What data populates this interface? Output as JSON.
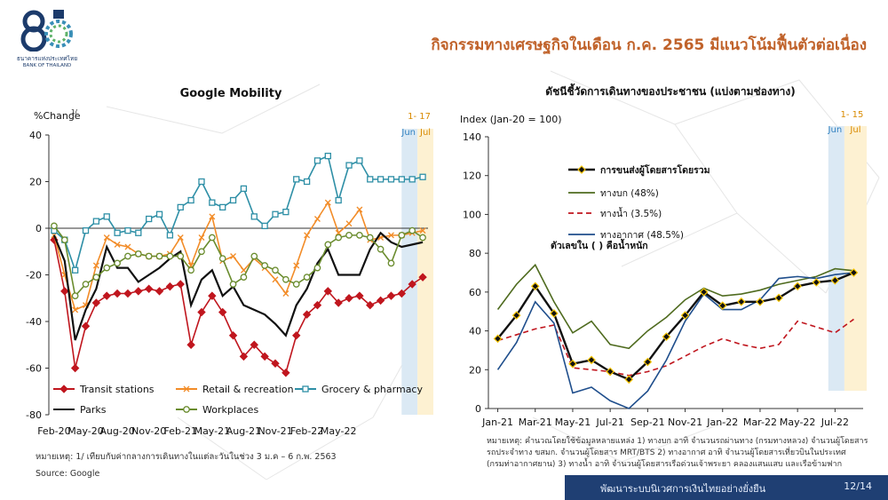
{
  "slide": {
    "title": "กิจกรรมทางเศรษฐกิจในเดือน ก.ค. 2565 มีแนวโน้มฟื้นตัวต่อเนื่อง",
    "logo_number": "85",
    "logo_text_th": "ธนาคารแห่งประเทศไทย",
    "logo_text_en": "BANK OF THAILAND",
    "footer": "พัฒนาระบบนิเวศการเงินไทยอย่างยั่งยืน",
    "page": "12/14",
    "colors": {
      "title": "#c0622a",
      "footer_bar": "#1f3f73",
      "logo": "#1c3b6b"
    }
  },
  "left_notes": {
    "note1": "หมายเหตุ: 1/ เทียบกับค่ากลางการเดินทางในแต่ละวันในช่วง 3 ม.ค –  6 ก.พ. 2563",
    "source": "Source: Google"
  },
  "right_notes": {
    "line1": "หมายเหตุ: คำนวณโดยใช้ข้อมูลหลายแหล่ง 1) ทางบก อาทิ จำนวนรถผ่านทาง (กรมทางหลวง) จำนวนผู้โดยสาร",
    "line2": "รถประจำทาง ขสมก. จำนวนผู้โดยสาร MRT/BTS  2) ทางอากาศ อาทิ จำนวนผู้โดยสารเที่ยวบินในประเทศ",
    "line3": "(กรมท่าอากาศยาน) 3) ทางน้ำ อาทิ จำนวนผู้โดยสารเรือด่วนเจ้าพระยา คลองแสนแสบ และเรือข้ามฟาก"
  },
  "chart_data": [
    {
      "type": "line",
      "title": "Google Mobility",
      "ylabel": "%Change",
      "ylabel_sup": "1/",
      "ylim": [
        -80,
        40
      ],
      "yticks": [
        -80,
        -60,
        -40,
        -20,
        0,
        20,
        40
      ],
      "xtick_labels": [
        "Feb-20",
        "May-20",
        "Aug-20",
        "Nov-20",
        "Feb-21",
        "May-21",
        "Aug-21",
        "Nov-21",
        "Feb-22",
        "May-22"
      ],
      "annotation_top": "1- 17",
      "shade_labels": [
        "Jun",
        "Jul"
      ],
      "legend_position": "bottom",
      "grid": false,
      "series": [
        {
          "name": "Transit stations",
          "color": "#c0161e",
          "marker": "diamond",
          "values": [
            -5,
            -27,
            -60,
            -42,
            -32,
            -29,
            -28,
            -28,
            -27,
            -26,
            -27,
            -25,
            -24,
            -50,
            -36,
            -29,
            -36,
            -46,
            -55,
            -50,
            -55,
            -58,
            -62,
            -46,
            -37,
            -33,
            -27,
            -32,
            -30,
            -29,
            -33,
            -31,
            -29,
            -28,
            -24,
            -21
          ]
        },
        {
          "name": "Retail & recreation",
          "color": "#f28c28",
          "marker": "x",
          "values": [
            -3,
            -20,
            -35,
            -33,
            -16,
            -4,
            -7,
            -8,
            -11,
            -12,
            -12,
            -11,
            -4,
            -16,
            -4,
            5,
            -14,
            -12,
            -18,
            -13,
            -17,
            -22,
            -28,
            -16,
            -3,
            4,
            11,
            -2,
            2,
            8,
            -5,
            -4,
            -3,
            -3,
            -2,
            -1
          ]
        },
        {
          "name": "Grocery & pharmacy",
          "color": "#2e8fa6",
          "marker": "square",
          "values": [
            -1,
            -5,
            -18,
            -1,
            3,
            5,
            -2,
            -1,
            -2,
            4,
            6,
            -3,
            9,
            12,
            20,
            11,
            9,
            12,
            17,
            5,
            1,
            6,
            7,
            21,
            20,
            29,
            31,
            12,
            27,
            29,
            21,
            21,
            21,
            21,
            21,
            22
          ]
        },
        {
          "name": "Parks",
          "color": "#111111",
          "marker": "none",
          "values": [
            -3,
            -14,
            -48,
            -35,
            -26,
            -8,
            -17,
            -17,
            -23,
            -20,
            -17,
            -13,
            -10,
            -33,
            -22,
            -18,
            -29,
            -25,
            -33,
            -35,
            -37,
            -41,
            -46,
            -33,
            -26,
            -15,
            -9,
            -20,
            -20,
            -20,
            -9,
            -2,
            -6,
            -8,
            -7,
            -6
          ]
        },
        {
          "name": "Workplaces",
          "color": "#6a8c2e",
          "marker": "circle",
          "values": [
            1,
            -5,
            -29,
            -24,
            -21,
            -17,
            -15,
            -12,
            -11,
            -12,
            -12,
            -12,
            -12,
            -18,
            -10,
            -4,
            -13,
            -24,
            -21,
            -12,
            -16,
            -18,
            -22,
            -24,
            -21,
            -17,
            -7,
            -4,
            -3,
            -3,
            -4,
            -9,
            -15,
            -3,
            -1,
            -4
          ]
        }
      ]
    },
    {
      "type": "line",
      "title": "ดัชนีชี้วัดการเดินทางของประชาชน (แบ่งตามช่องทาง)",
      "ylabel": "Index (Jan-20 = 100)",
      "ylim": [
        0,
        140
      ],
      "yticks": [
        0,
        20,
        40,
        60,
        80,
        100,
        120,
        140
      ],
      "xtick_labels": [
        "Jan-21",
        "Mar-21",
        "May-21",
        "Jul-21",
        "Sep-21",
        "Nov-21",
        "Jan-22",
        "Mar-22",
        "May-22",
        "Jul-22"
      ],
      "annotation_top": "1- 15",
      "shade_labels": [
        "Jun",
        "Jul"
      ],
      "legend_position": "top-left",
      "legend_note": "ตัวเลขใน ( ) คือน้ำหนัก",
      "grid": false,
      "series": [
        {
          "name": "การขนส่งผู้โดยสารโดยรวม",
          "color": "#111111",
          "marker": "diamond",
          "values": [
            36,
            48,
            63,
            49,
            23,
            25,
            19,
            15,
            24,
            37,
            48,
            60,
            53,
            55,
            55,
            57,
            63,
            65,
            66,
            70
          ]
        },
        {
          "name": "ทางบก (48%)",
          "color": "#4f6b1f",
          "marker": "none",
          "values": [
            51,
            64,
            74,
            55,
            39,
            45,
            33,
            31,
            40,
            47,
            56,
            62,
            58,
            59,
            61,
            64,
            66,
            68,
            72,
            71
          ]
        },
        {
          "name": "ทางน้ำ (3.5%)",
          "color": "#c0161e",
          "marker": "none",
          "dashed": true,
          "values": [
            35,
            38,
            41,
            43,
            21,
            20,
            19,
            17,
            19,
            22,
            27,
            32,
            36,
            33,
            31,
            33,
            45,
            42,
            39,
            46
          ]
        },
        {
          "name": "ทางอากาศ (48.5%)",
          "color": "#1f4e8c",
          "marker": "none",
          "values": [
            20,
            34,
            55,
            44,
            8,
            11,
            4,
            0,
            9,
            25,
            45,
            59,
            51,
            51,
            56,
            67,
            68,
            67,
            69,
            70
          ]
        }
      ]
    }
  ]
}
